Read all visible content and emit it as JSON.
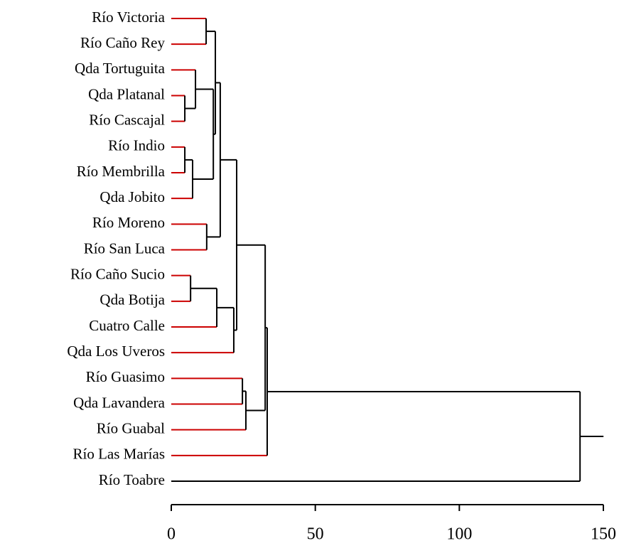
{
  "chart_data": {
    "type": "dendrogram",
    "leaves": [
      {
        "name": "Río Victoria",
        "color": "#cc0000"
      },
      {
        "name": "Río Caño Rey",
        "color": "#cc0000"
      },
      {
        "name": "Qda Tortuguita",
        "color": "#cc0000"
      },
      {
        "name": "Qda Platanal",
        "color": "#cc0000"
      },
      {
        "name": "Río Cascajal",
        "color": "#cc0000"
      },
      {
        "name": "Río Indio",
        "color": "#cc0000"
      },
      {
        "name": "Río Membrilla",
        "color": "#cc0000"
      },
      {
        "name": "Qda Jobito",
        "color": "#cc0000"
      },
      {
        "name": "Río Moreno",
        "color": "#cc0000"
      },
      {
        "name": "Río San Luca",
        "color": "#cc0000"
      },
      {
        "name": "Río Caño Sucio",
        "color": "#cc0000"
      },
      {
        "name": "Qda Botija",
        "color": "#cc0000"
      },
      {
        "name": "Cuatro Calle",
        "color": "#cc0000"
      },
      {
        "name": "Qda Los Uveros",
        "color": "#cc0000"
      },
      {
        "name": "Río Guasimo",
        "color": "#cc0000"
      },
      {
        "name": "Qda Lavandera",
        "color": "#cc0000"
      },
      {
        "name": "Río Guabal",
        "color": "#cc0000"
      },
      {
        "name": "Río Las Marías",
        "color": "#cc0000"
      },
      {
        "name": "Río Toabre",
        "color": "#000000"
      }
    ],
    "merges": [
      {
        "left": 0,
        "right": 1,
        "height": 12.1
      },
      {
        "left": 3,
        "right": 4,
        "height": 4.7
      },
      {
        "left": 2,
        "right": 20,
        "height": 8.4
      },
      {
        "left": 5,
        "right": 6,
        "height": 4.7
      },
      {
        "left": 22,
        "right": 7,
        "height": 7.4
      },
      {
        "left": 21,
        "right": 23,
        "height": 14.6
      },
      {
        "left": 19,
        "right": 24,
        "height": 15.3
      },
      {
        "left": 8,
        "right": 9,
        "height": 12.3
      },
      {
        "left": 25,
        "right": 26,
        "height": 17.0
      },
      {
        "left": 10,
        "right": 11,
        "height": 6.7
      },
      {
        "left": 28,
        "right": 12,
        "height": 15.8
      },
      {
        "left": 29,
        "right": 13,
        "height": 21.7
      },
      {
        "left": 27,
        "right": 30,
        "height": 22.7
      },
      {
        "left": 14,
        "right": 15,
        "height": 24.7
      },
      {
        "left": 32,
        "right": 16,
        "height": 25.9
      },
      {
        "left": 31,
        "right": 33,
        "height": 32.6
      },
      {
        "left": 34,
        "right": 17,
        "height": 33.3
      },
      {
        "left": 35,
        "right": 18,
        "height": 141.9
      }
    ],
    "xlim": [
      0,
      150
    ],
    "xticks": [
      0,
      50,
      100,
      150
    ]
  }
}
